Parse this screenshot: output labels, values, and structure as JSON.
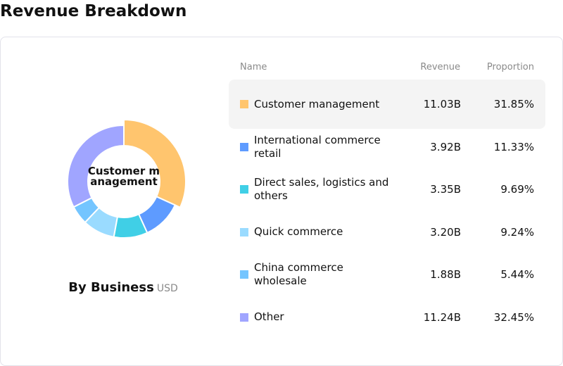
{
  "title": "Revenue Breakdown",
  "chart_data": {
    "type": "pie",
    "donut": true,
    "title": "By Business",
    "unit": "USD",
    "center_label": "Customer management",
    "columns": {
      "name": "Name",
      "revenue": "Revenue",
      "proportion": "Proportion"
    },
    "slices": [
      {
        "name": "Customer management",
        "revenue": "11.03B",
        "proportion": "31.85%",
        "value": 31.85,
        "color": "#FFC56E",
        "active": true
      },
      {
        "name": "International commerce retail",
        "revenue": "3.92B",
        "proportion": "11.33%",
        "value": 11.33,
        "color": "#5E9BFF"
      },
      {
        "name": "Direct sales, logistics and others",
        "revenue": "3.35B",
        "proportion": "9.69%",
        "value": 9.69,
        "color": "#40CFE6"
      },
      {
        "name": "Quick commerce",
        "revenue": "3.20B",
        "proportion": "9.24%",
        "value": 9.24,
        "color": "#9ADBFF"
      },
      {
        "name": "China commerce wholesale",
        "revenue": "1.88B",
        "proportion": "5.44%",
        "value": 5.44,
        "color": "#74C5FF"
      },
      {
        "name": "Other",
        "revenue": "11.24B",
        "proportion": "32.45%",
        "value": 32.45,
        "color": "#A0A5FF"
      }
    ]
  }
}
